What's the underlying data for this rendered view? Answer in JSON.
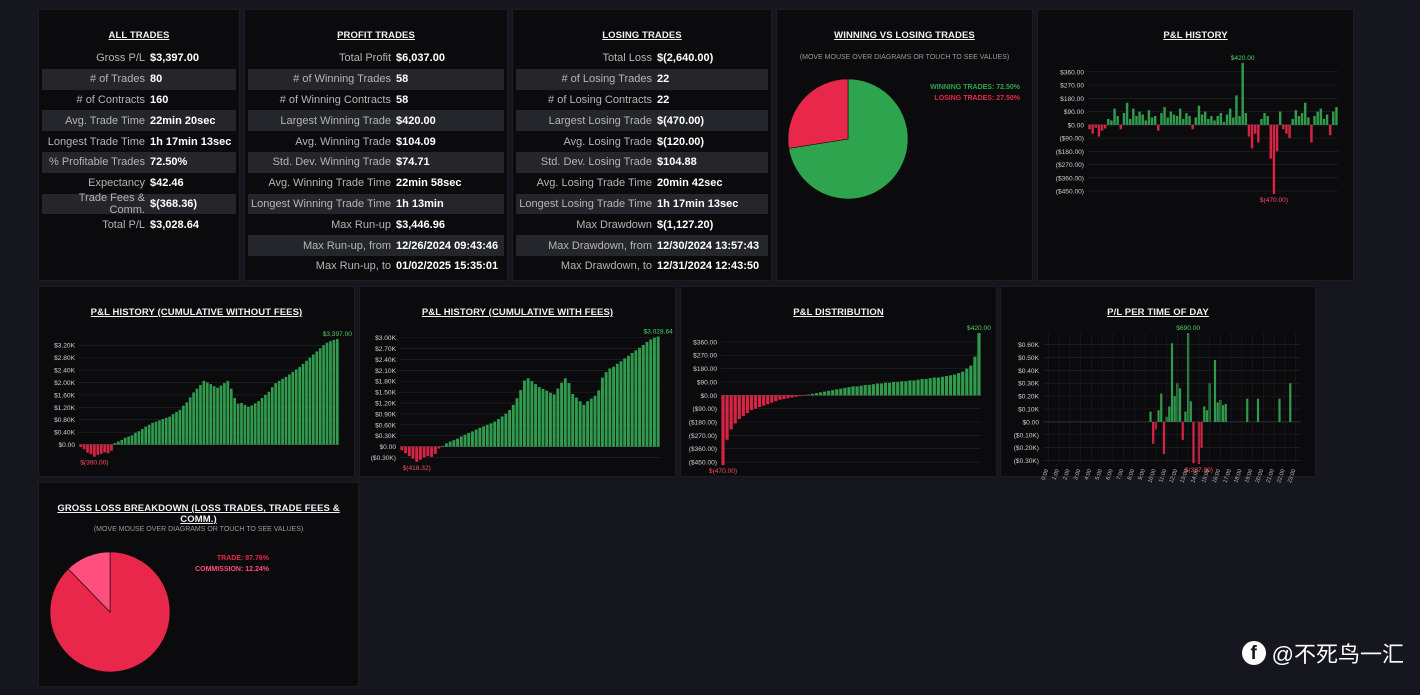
{
  "all_trades": {
    "title": "ALL TRADES",
    "rows": [
      {
        "label": "Gross P/L",
        "value": "$3,397.00"
      },
      {
        "label": "# of Trades",
        "value": "80"
      },
      {
        "label": "# of Contracts",
        "value": "160"
      },
      {
        "label": "Avg. Trade Time",
        "value": "22min 20sec"
      },
      {
        "label": "Longest Trade Time",
        "value": "1h 17min 13sec"
      },
      {
        "label": "% Profitable Trades",
        "value": "72.50%"
      },
      {
        "label": "Expectancy",
        "value": "$42.46"
      },
      {
        "label": "Trade Fees & Comm.",
        "value": "$(368.36)"
      },
      {
        "label": "Total P/L",
        "value": "$3,028.64"
      }
    ]
  },
  "profit_trades": {
    "title": "PROFIT TRADES",
    "rows": [
      {
        "label": "Total Profit",
        "value": "$6,037.00"
      },
      {
        "label": "# of Winning Trades",
        "value": "58"
      },
      {
        "label": "# of Winning Contracts",
        "value": "58"
      },
      {
        "label": "Largest Winning Trade",
        "value": "$420.00"
      },
      {
        "label": "Avg. Winning Trade",
        "value": "$104.09"
      },
      {
        "label": "Std. Dev. Winning Trade",
        "value": "$74.71"
      },
      {
        "label": "Avg. Winning Trade Time",
        "value": "22min 58sec"
      },
      {
        "label": "Longest Winning Trade Time",
        "value": "1h 13min"
      },
      {
        "label": "Max Run-up",
        "value": "$3,446.96"
      },
      {
        "label": "Max Run-up, from",
        "value": "12/26/2024 09:43:46"
      },
      {
        "label": "Max Run-up, to",
        "value": "01/02/2025 15:35:01"
      }
    ]
  },
  "losing_trades": {
    "title": "LOSING TRADES",
    "rows": [
      {
        "label": "Total Loss",
        "value": "$(2,640.00)"
      },
      {
        "label": "# of Losing Trades",
        "value": "22"
      },
      {
        "label": "# of Losing Contracts",
        "value": "22"
      },
      {
        "label": "Largest Losing Trade",
        "value": "$(470.00)"
      },
      {
        "label": "Avg. Losing Trade",
        "value": "$(120.00)"
      },
      {
        "label": "Std. Dev. Losing Trade",
        "value": "$104.88"
      },
      {
        "label": "Avg. Losing Trade Time",
        "value": "20min 42sec"
      },
      {
        "label": "Longest Losing Trade Time",
        "value": "1h 17min 13sec"
      },
      {
        "label": "Max Drawdown",
        "value": "$(1,127.20)"
      },
      {
        "label": "Max Drawdown, from",
        "value": "12/30/2024 13:57:43"
      },
      {
        "label": "Max Drawdown, to",
        "value": "12/31/2024 12:43:50"
      }
    ]
  },
  "win_loss": {
    "title": "WINNING VS LOSING TRADES",
    "note": "(MOVE MOUSE OVER DIAGRAMS OR TOUCH TO SEE VALUES)",
    "legend": [
      "WINNING TRADES: 72.50%",
      "LOSING TRADES: 27.50%"
    ]
  },
  "pl_history": {
    "title": "P&L HISTORY",
    "max_label": "$420.00",
    "min_label": "$(470.00)",
    "ticks": [
      "$360.00",
      "$270.00",
      "$180.00",
      "$90.00",
      "$0.00",
      "($90.00)",
      "($180.00)",
      "($270.00)",
      "($360.00)",
      "($450.00)"
    ]
  },
  "cum_no_fees": {
    "title": "P&L HISTORY (CUMULATIVE WITHOUT FEES)",
    "max_label": "$3,397.00",
    "min_label": "$(390.00)",
    "ticks": [
      "$3.20K",
      "$2.80K",
      "$2.40K",
      "$2.00K",
      "$1.60K",
      "$1.20K",
      "$0.80K",
      "$0.40K",
      "$0.00"
    ]
  },
  "cum_fees": {
    "title": "P&L HISTORY (CUMULATIVE WITH FEES)",
    "max_label": "$3,028.64",
    "min_label": "$(418.32)",
    "ticks": [
      "$3.00K",
      "$2.70K",
      "$2.40K",
      "$2.10K",
      "$1.80K",
      "$1.50K",
      "$1.20K",
      "$0.90K",
      "$0.60K",
      "$0.30K",
      "$0.00",
      "($0.30K)"
    ]
  },
  "distribution": {
    "title": "P&L DISTRIBUTION",
    "max_label": "$420.00",
    "min_label": "$(470.00)",
    "ticks": [
      "$360.00",
      "$270.00",
      "$180.00",
      "$90.00",
      "$0.00",
      "($90.00)",
      "($180.00)",
      "($270.00)",
      "($360.00)",
      "($450.00)"
    ]
  },
  "time_of_day": {
    "title": "P/L PER TIME OF DAY",
    "max_label": "$690.00",
    "min_label": "$(327.00)",
    "ticks": [
      "$0.60K",
      "$0.50K",
      "$0.40K",
      "$0.30K",
      "$0.20K",
      "$0.10K",
      "$0.00",
      "($0.10K)",
      "($0.20K)",
      "($0.30K)"
    ],
    "hours": [
      "0:00",
      "1:00",
      "2:00",
      "3:00",
      "4:00",
      "5:00",
      "6:00",
      "7:00",
      "8:00",
      "9:00",
      "10:00",
      "11:00",
      "12:00",
      "13:00",
      "14:00",
      "15:00",
      "16:00",
      "17:00",
      "18:00",
      "19:00",
      "20:00",
      "21:00",
      "22:00",
      "23:00"
    ]
  },
  "gross_loss": {
    "title": "GROSS LOSS BREAKDOWN (LOSS TRADES, TRADE FEES & COMM.)",
    "note": "(MOVE MOUSE OVER DIAGRAMS OR TOUCH TO SEE VALUES)",
    "legend": [
      "TRADE: 87.76%",
      "COMMISSION: 12.24%"
    ]
  },
  "watermark": {
    "icon": "facebook-icon",
    "text": "@不死鸟一汇"
  },
  "chart_data": [
    {
      "type": "pie",
      "title": "WINNING VS LOSING TRADES",
      "labels": [
        "WINNING TRADES",
        "LOSING TRADES"
      ],
      "values": [
        72.5,
        27.5
      ],
      "colors": [
        "#2fa44f",
        "#e8274a"
      ]
    },
    {
      "type": "pie",
      "title": "GROSS LOSS BREAKDOWN (LOSS TRADES, TRADE FEES & COMM.)",
      "labels": [
        "TRADE",
        "COMMISSION"
      ],
      "values": [
        87.76,
        12.24
      ],
      "colors": [
        "#e8274a",
        "#ff4f7e"
      ]
    },
    {
      "type": "bar",
      "title": "P&L HISTORY",
      "ylim": [
        -470,
        420
      ],
      "values": [
        -30,
        -60,
        -20,
        -80,
        -40,
        -25,
        40,
        30,
        110,
        60,
        -30,
        80,
        150,
        40,
        110,
        60,
        90,
        70,
        30,
        100,
        50,
        60,
        -40,
        80,
        120,
        50,
        90,
        70,
        60,
        110,
        40,
        80,
        60,
        -30,
        50,
        130,
        70,
        90,
        40,
        60,
        30,
        60,
        80,
        20,
        70,
        110,
        50,
        200,
        60,
        420,
        80,
        -80,
        -160,
        -60,
        -120,
        40,
        80,
        60,
        -230,
        -470,
        -180,
        90,
        -30,
        -60,
        -90,
        40,
        100,
        60,
        80,
        150,
        50,
        -120,
        60,
        90,
        110,
        40,
        70,
        -70,
        90,
        120
      ]
    },
    {
      "type": "bar",
      "title": "P&L HISTORY (CUMULATIVE WITHOUT FEES)",
      "ylim": [
        -400,
        3400
      ],
      "values": [
        -80,
        -150,
        -260,
        -310,
        -390,
        -330,
        -300,
        -250,
        -280,
        -200,
        50,
        100,
        150,
        220,
        260,
        300,
        380,
        430,
        500,
        580,
        640,
        700,
        740,
        780,
        820,
        860,
        900,
        980,
        1050,
        1120,
        1250,
        1360,
        1520,
        1680,
        1800,
        1920,
        2050,
        2000,
        1950,
        1880,
        1830,
        1900,
        1980,
        2050,
        1800,
        1500,
        1320,
        1340,
        1280,
        1220,
        1260,
        1330,
        1400,
        1500,
        1600,
        1700,
        1850,
        1980,
        2050,
        2120,
        2180,
        2260,
        2340,
        2420,
        2500,
        2600,
        2700,
        2800,
        2900,
        3000,
        3100,
        3200,
        3280,
        3330,
        3370,
        3397
      ]
    },
    {
      "type": "bar",
      "title": "P&L HISTORY (CUMULATIVE WITH FEES)",
      "ylim": [
        -450,
        3100
      ],
      "values": [
        -100,
        -180,
        -260,
        -330,
        -418,
        -360,
        -300,
        -260,
        -280,
        -200,
        -50,
        20,
        90,
        140,
        180,
        220,
        280,
        330,
        380,
        420,
        470,
        520,
        560,
        600,
        640,
        690,
        760,
        830,
        910,
        1010,
        1150,
        1330,
        1560,
        1820,
        1880,
        1800,
        1720,
        1640,
        1590,
        1540,
        1480,
        1440,
        1600,
        1760,
        1880,
        1750,
        1450,
        1350,
        1250,
        1150,
        1250,
        1320,
        1400,
        1550,
        1900,
        2050,
        2150,
        2200,
        2280,
        2350,
        2430,
        2500,
        2580,
        2650,
        2720,
        2800,
        2880,
        2950,
        3000,
        3028
      ]
    },
    {
      "type": "bar",
      "title": "P&L DISTRIBUTION",
      "ylim": [
        -470,
        420
      ],
      "values": [
        -470,
        -300,
        -230,
        -190,
        -160,
        -140,
        -120,
        -100,
        -90,
        -80,
        -70,
        -60,
        -50,
        -40,
        -30,
        -25,
        -20,
        -15,
        -10,
        -5,
        -3,
        5,
        10,
        15,
        20,
        25,
        30,
        35,
        40,
        45,
        50,
        55,
        60,
        60,
        65,
        70,
        70,
        75,
        80,
        80,
        85,
        85,
        90,
        90,
        95,
        95,
        100,
        100,
        105,
        110,
        110,
        115,
        120,
        120,
        125,
        130,
        135,
        140,
        150,
        160,
        180,
        200,
        260,
        420
      ]
    },
    {
      "type": "bar",
      "title": "P/L PER TIME OF DAY",
      "categories": [
        "0:00",
        "1:00",
        "2:00",
        "3:00",
        "4:00",
        "5:00",
        "6:00",
        "7:00",
        "8:00",
        "9:00",
        "10:00",
        "11:00",
        "12:00",
        "13:00",
        "14:00",
        "15:00",
        "16:00",
        "17:00",
        "18:00",
        "19:00",
        "20:00",
        "21:00",
        "22:00",
        "23:00"
      ],
      "x": [
        9.5,
        9.75,
        10.0,
        10.25,
        10.5,
        10.75,
        11.0,
        11.25,
        11.5,
        11.75,
        12.0,
        12.25,
        12.5,
        12.75,
        13.0,
        13.25,
        13.5,
        14.0,
        14.25,
        14.5,
        14.75,
        15.0,
        15.5,
        15.75,
        16.0,
        16.25,
        16.5,
        18.5,
        19.5,
        21.5,
        22.5
      ],
      "values": [
        80,
        -170,
        -60,
        90,
        220,
        -250,
        40,
        120,
        610,
        200,
        300,
        260,
        -140,
        80,
        690,
        160,
        -320,
        -327,
        -200,
        120,
        90,
        300,
        480,
        150,
        170,
        130,
        140,
        180,
        180,
        180,
        300
      ],
      "ylim": [
        -327,
        690
      ]
    }
  ]
}
